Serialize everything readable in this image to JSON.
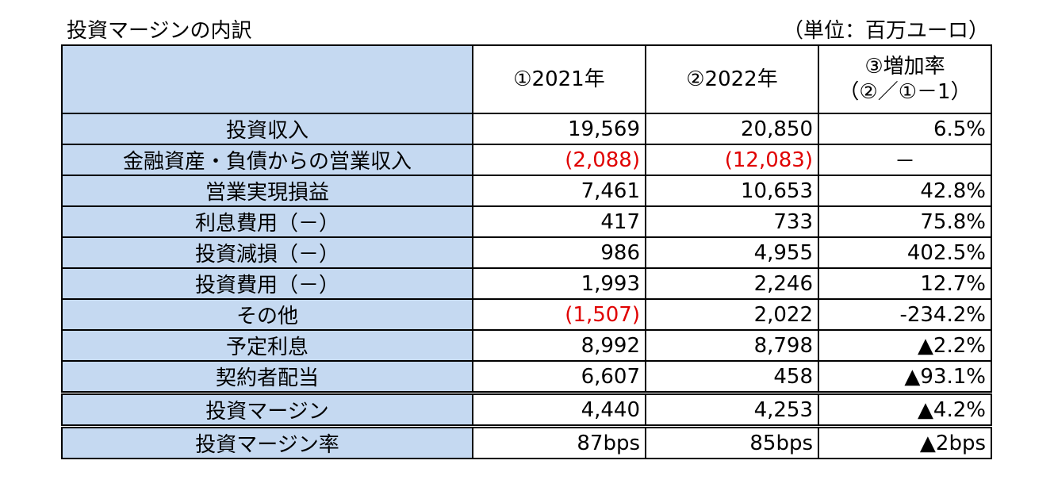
{
  "title": "投資マージンの内訳",
  "unit": "（単位：百万ユーロ）",
  "columns": {
    "col1": "①2021年",
    "col2": "②2022年",
    "col3_line1": "③増加率",
    "col3_line2": "（②／①－1）"
  },
  "rows": [
    {
      "label": "投資収入",
      "v2021": "19,569",
      "v2022": "20,850",
      "rate": "6.5%"
    },
    {
      "label": "金融資産・負債からの営業収入",
      "v2021": "(2,088)",
      "v2022": "(12,083)",
      "rate": "－"
    },
    {
      "label": "営業実現損益",
      "v2021": "7,461",
      "v2022": "10,653",
      "rate": "42.8%"
    },
    {
      "label": "利息費用（－）",
      "v2021": "417",
      "v2022": "733",
      "rate": "75.8%"
    },
    {
      "label": "投資減損（－）",
      "v2021": "986",
      "v2022": "4,955",
      "rate": "402.5%"
    },
    {
      "label": "投資費用（－）",
      "v2021": "1,993",
      "v2022": "2,246",
      "rate": "12.7%"
    },
    {
      "label": "その他",
      "v2021": "(1,507)",
      "v2022": "2,022",
      "rate": "-234.2%"
    },
    {
      "label": "予定利息",
      "v2021": "8,992",
      "v2022": "8,798",
      "rate": "▲2.2%"
    },
    {
      "label": "契約者配当",
      "v2021": "6,607",
      "v2022": "458",
      "rate": "▲93.1%"
    },
    {
      "label": "投資マージン",
      "v2021": "4,440",
      "v2022": "4,253",
      "rate": "▲4.2%"
    },
    {
      "label": "投資マージン率",
      "v2021": "87bps",
      "v2022": "85bps",
      "rate": "▲2bps"
    }
  ],
  "colors": {
    "header_fill": "#c5d9f1",
    "negative_text": "#e00000"
  }
}
